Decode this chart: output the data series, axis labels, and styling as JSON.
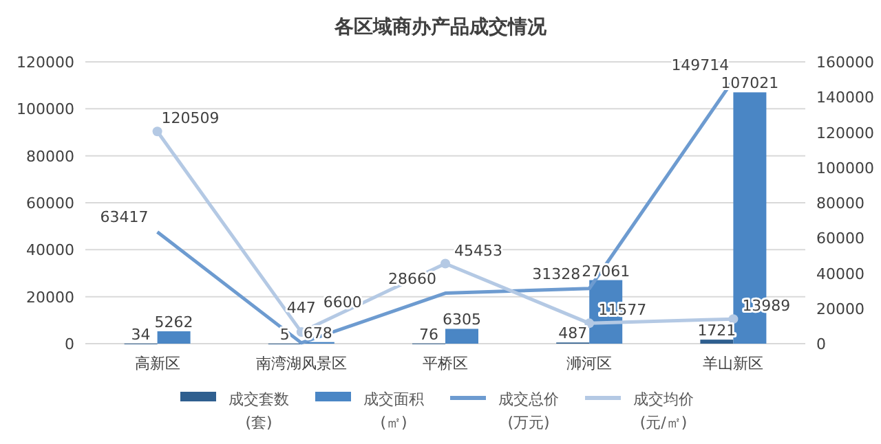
{
  "chart_data": {
    "type": "bar",
    "title": "各区域商办产品成交情况",
    "categories": [
      "高新区",
      "南湾湖风景区",
      "平桥区",
      "浉河区",
      "羊山新区"
    ],
    "series": [
      {
        "name": "成交套数(套)",
        "type": "bar",
        "color": "#2f5f8f",
        "values": [
          34,
          5,
          76,
          487,
          1721
        ]
      },
      {
        "name": "成交面积(㎡)",
        "type": "bar",
        "color": "#4a86c5",
        "values": [
          5262,
          678,
          6305,
          27061,
          107021
        ]
      },
      {
        "name": "成交总价(万元)",
        "type": "line",
        "axis": "y2",
        "marker": "none",
        "color": "#6d9bd0",
        "values": [
          63417,
          447,
          28660,
          31328,
          149714
        ]
      },
      {
        "name": "成交均价(元/㎡)",
        "type": "line",
        "axis": "y2",
        "marker": "circle",
        "color": "#b4c9e4",
        "values": [
          120509,
          6600,
          45453,
          11577,
          13989
        ]
      }
    ],
    "ylim": [
      0,
      120000
    ],
    "yticks": [
      0,
      20000,
      40000,
      60000,
      80000,
      100000,
      120000
    ],
    "y2lim": [
      0,
      160000
    ],
    "y2ticks": [
      0,
      20000,
      40000,
      60000,
      80000,
      100000,
      120000,
      140000,
      160000
    ],
    "data_labels": true,
    "grid": "y",
    "legend": "bottom"
  }
}
